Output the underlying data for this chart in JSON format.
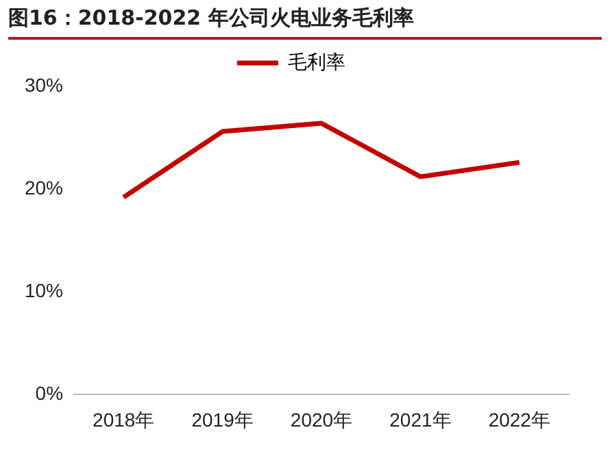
{
  "chart_data": {
    "type": "line",
    "title": "图16：2018-2022 年公司火电业务毛利率",
    "categories": [
      "2018年",
      "2019年",
      "2020年",
      "2021年",
      "2022年"
    ],
    "series": [
      {
        "name": "毛利率",
        "color": "#c00000",
        "values": [
          19.2,
          25.6,
          26.4,
          21.2,
          22.6
        ]
      }
    ],
    "ylim": [
      0,
      30
    ],
    "yticks": [
      {
        "value": 0,
        "label": "0%"
      },
      {
        "value": 10,
        "label": "10%"
      },
      {
        "value": 20,
        "label": "20%"
      },
      {
        "value": 30,
        "label": "30%"
      }
    ],
    "grid": false,
    "legend": "top",
    "marker": "none",
    "line_style": "solid"
  }
}
